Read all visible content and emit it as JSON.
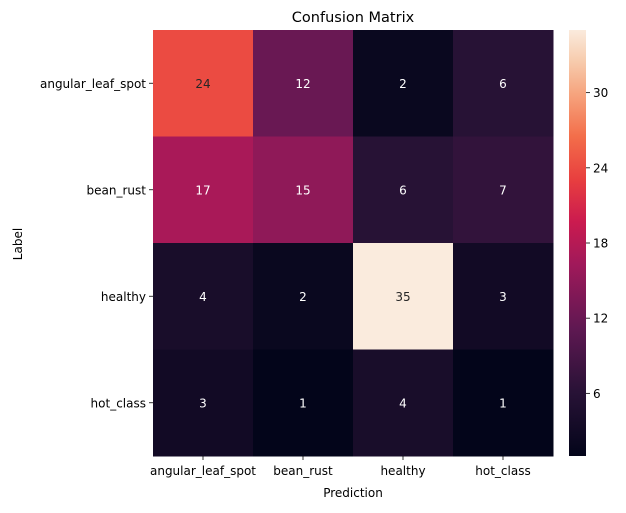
{
  "chart_data": {
    "type": "heatmap",
    "title": "Confusion Matrix",
    "xlabel": "Prediction",
    "ylabel": "Label",
    "x_categories": [
      "angular_leaf_spot",
      "bean_rust",
      "healthy",
      "hot_class"
    ],
    "y_categories": [
      "angular_leaf_spot",
      "bean_rust",
      "healthy",
      "hot_class"
    ],
    "values": [
      [
        24,
        12,
        2,
        6
      ],
      [
        17,
        15,
        6,
        7
      ],
      [
        4,
        2,
        35,
        3
      ],
      [
        3,
        1,
        4,
        1
      ]
    ],
    "colorbar": {
      "colormap": "rocket",
      "vmin": 1,
      "vmax": 35,
      "ticks": [
        6,
        12,
        18,
        24,
        30
      ]
    }
  }
}
